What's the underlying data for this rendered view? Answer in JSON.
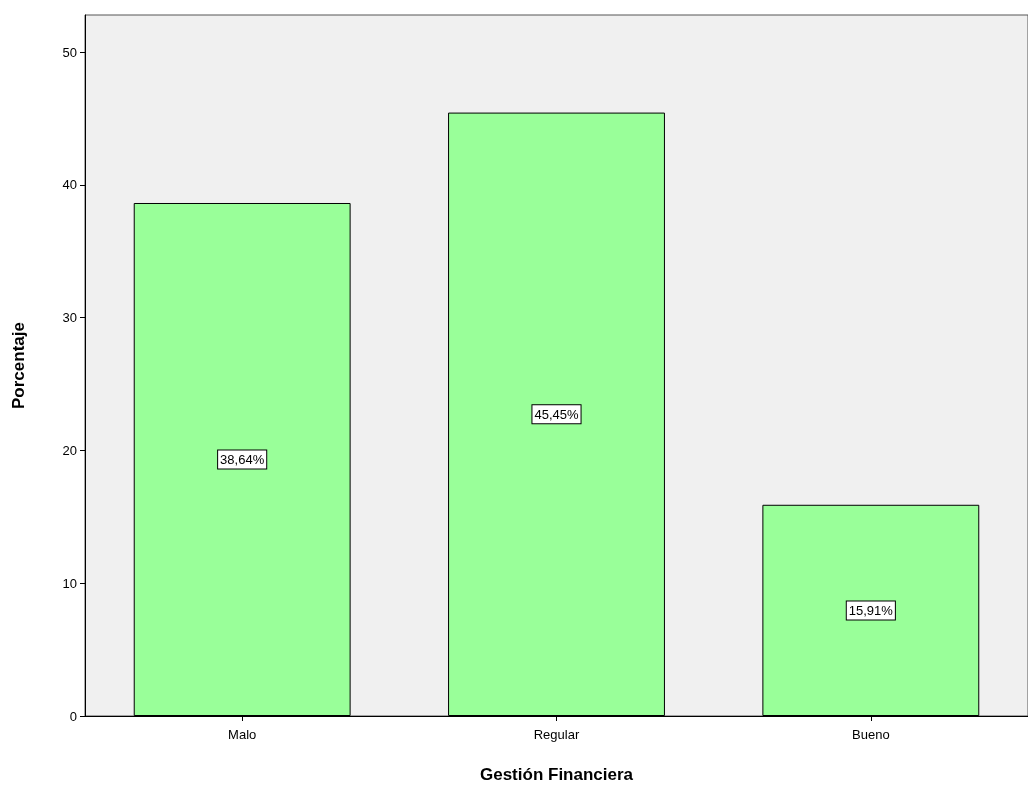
{
  "chart_data": {
    "type": "bar",
    "xlabel": "Gestión Financiera",
    "ylabel": "Porcentaje",
    "categories": [
      "Malo",
      "Regular",
      "Bueno"
    ],
    "values": [
      38.64,
      45.45,
      15.91
    ],
    "value_labels": [
      "38,64%",
      "45,45%",
      "15,91%"
    ],
    "color": "#99ff99",
    "ylim": [
      0,
      52.8
    ],
    "yticks": [
      0,
      10,
      20,
      30,
      40,
      50
    ],
    "grid": false
  }
}
